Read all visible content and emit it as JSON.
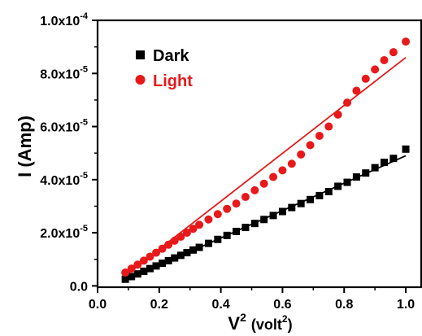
{
  "chart_data": {
    "type": "scatter",
    "xlabel": {
      "base": "V",
      "sup": "2",
      "unit_base": "(volt",
      "unit_sup": "2",
      "unit_close": ")"
    },
    "ylabel": "I (Amp)",
    "xlim": [
      0.0,
      1.05
    ],
    "ylim": [
      -5e-07,
      0.0001
    ],
    "x_ticks": [
      {
        "value": 0.0,
        "label": "0.0"
      },
      {
        "value": 0.2,
        "label": "0.2"
      },
      {
        "value": 0.4,
        "label": "0.4"
      },
      {
        "value": 0.6,
        "label": "0.6"
      },
      {
        "value": 0.8,
        "label": "0.8"
      },
      {
        "value": 1.0,
        "label": "1.0"
      }
    ],
    "y_ticks": [
      {
        "value": 0.0,
        "mantissa": "0.0",
        "exp": ""
      },
      {
        "value": 2e-05,
        "mantissa": "2.0x10",
        "exp": "-5"
      },
      {
        "value": 4e-05,
        "mantissa": "4.0x10",
        "exp": "-5"
      },
      {
        "value": 6e-05,
        "mantissa": "6.0x10",
        "exp": "-5"
      },
      {
        "value": 8e-05,
        "mantissa": "8.0x10",
        "exp": "-5"
      },
      {
        "value": 0.0001,
        "mantissa": "1.0x10",
        "exp": "-4"
      }
    ],
    "legend_position": "top-left",
    "grid": false,
    "series": [
      {
        "name": "Dark",
        "color": "#000000",
        "marker": "square",
        "x": [
          0.09,
          0.11,
          0.13,
          0.15,
          0.17,
          0.19,
          0.21,
          0.23,
          0.25,
          0.27,
          0.29,
          0.31,
          0.33,
          0.36,
          0.39,
          0.42,
          0.45,
          0.48,
          0.51,
          0.54,
          0.57,
          0.6,
          0.63,
          0.66,
          0.69,
          0.72,
          0.75,
          0.78,
          0.81,
          0.84,
          0.87,
          0.9,
          0.93,
          0.96,
          1.0
        ],
        "y": [
          2.5e-06,
          3.5e-06,
          4.5e-06,
          5.5e-06,
          6.5e-06,
          7.5e-06,
          8.5e-06,
          9.5e-06,
          1.05e-05,
          1.15e-05,
          1.25e-05,
          1.35e-05,
          1.45e-05,
          1.6e-05,
          1.75e-05,
          1.9e-05,
          2.05e-05,
          2.2e-05,
          2.35e-05,
          2.5e-05,
          2.65e-05,
          2.8e-05,
          2.95e-05,
          3.1e-05,
          3.25e-05,
          3.4e-05,
          3.55e-05,
          3.75e-05,
          3.9e-05,
          4.1e-05,
          4.25e-05,
          4.45e-05,
          4.65e-05,
          4.8e-05,
          5.15e-05
        ]
      },
      {
        "name": "Light",
        "color": "#e8191a",
        "marker": "circle",
        "x": [
          0.09,
          0.11,
          0.13,
          0.15,
          0.17,
          0.19,
          0.21,
          0.23,
          0.25,
          0.27,
          0.29,
          0.31,
          0.33,
          0.36,
          0.39,
          0.42,
          0.45,
          0.48,
          0.51,
          0.54,
          0.57,
          0.6,
          0.63,
          0.66,
          0.69,
          0.72,
          0.75,
          0.78,
          0.81,
          0.84,
          0.87,
          0.9,
          0.93,
          0.96,
          1.0
        ],
        "y": [
          5e-06,
          6.5e-06,
          8e-06,
          9.5e-06,
          1.1e-05,
          1.25e-05,
          1.4e-05,
          1.55e-05,
          1.7e-05,
          1.85e-05,
          2e-05,
          2.15e-05,
          2.3e-05,
          2.5e-05,
          2.7e-05,
          2.9e-05,
          3.1e-05,
          3.35e-05,
          3.6e-05,
          3.85e-05,
          4.1e-05,
          4.35e-05,
          4.6e-05,
          4.95e-05,
          5.3e-05,
          5.65e-05,
          6e-05,
          6.45e-05,
          6.9e-05,
          7.35e-05,
          7.8e-05,
          8.15e-05,
          8.5e-05,
          8.8e-05,
          9.2e-05
        ]
      }
    ],
    "fits": [
      {
        "series": "Dark",
        "color": "#000000",
        "x": [
          0.08,
          1.0
        ],
        "y": [
          1.5e-06,
          4.9e-05
        ]
      },
      {
        "series": "Light",
        "color": "#e8191a",
        "x": [
          0.08,
          1.0
        ],
        "y": [
          3e-06,
          8.6e-05
        ]
      }
    ]
  }
}
